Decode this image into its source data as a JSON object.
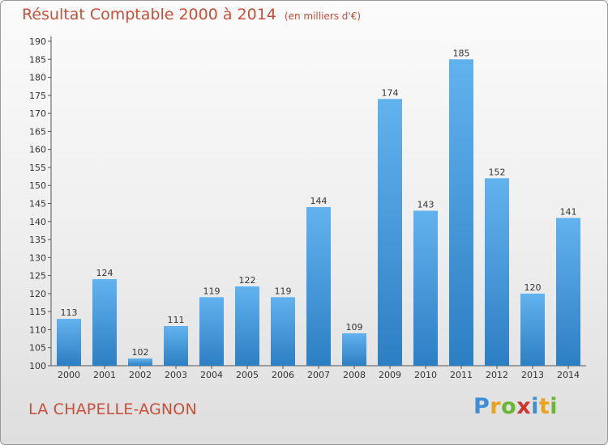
{
  "title": "Résultat Comptable 2000 à 2014",
  "unit_label": "(en milliers d'€)",
  "commune": "LA CHAPELLE-AGNON",
  "logo": {
    "text": "Proxiti",
    "letter_colors": [
      "#3a8fd8",
      "#e8a21b",
      "#6ab534",
      "#d0342c",
      "#3a8fd8",
      "#e8a21b",
      "#6ab534"
    ]
  },
  "colors": {
    "bar_top": "#62b2ee",
    "bar_bottom": "#2c7fc3",
    "title": "#c8503a",
    "axis": "#555555"
  },
  "chart_data": {
    "type": "bar",
    "categories": [
      "2000",
      "2001",
      "2002",
      "2003",
      "2004",
      "2005",
      "2006",
      "2007",
      "2008",
      "2009",
      "2010",
      "2011",
      "2012",
      "2013",
      "2014"
    ],
    "values": [
      113,
      124,
      102,
      111,
      119,
      122,
      119,
      144,
      109,
      174,
      143,
      185,
      152,
      120,
      141
    ],
    "yticks": [
      100,
      105,
      110,
      115,
      120,
      125,
      130,
      135,
      140,
      145,
      150,
      155,
      160,
      165,
      170,
      175,
      180,
      185,
      190
    ],
    "ylim": [
      100,
      190
    ],
    "title": "Résultat Comptable 2000 à 2014",
    "xlabel": "",
    "ylabel": ""
  }
}
